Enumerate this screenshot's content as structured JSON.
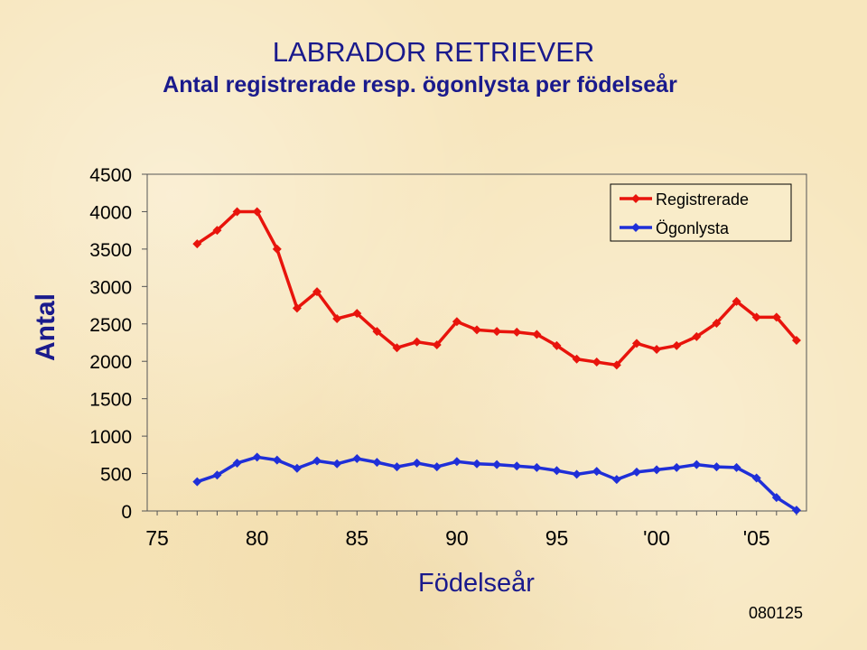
{
  "title": "LABRADOR RETRIEVER",
  "subtitle": "Antal registrerade resp. ögonlysta per födelseår",
  "stamp": "080125",
  "chart_data": {
    "type": "line",
    "xlabel": "Födelseår",
    "ylabel": "Antal",
    "x": [
      1977,
      1978,
      1979,
      1980,
      1981,
      1982,
      1983,
      1984,
      1985,
      1986,
      1987,
      1988,
      1989,
      1990,
      1991,
      1992,
      1993,
      1994,
      1995,
      1996,
      1997,
      1998,
      1999,
      2000,
      2001,
      2002,
      2003,
      2004,
      2005,
      2006,
      2007
    ],
    "xlim": [
      1974.5,
      2007.5
    ],
    "ylim": [
      0,
      4500
    ],
    "x_ticks": [
      1975,
      1980,
      1985,
      1990,
      1995,
      2000,
      2005
    ],
    "x_tick_labels": [
      "75",
      "80",
      "85",
      "90",
      "95",
      "'00",
      "'05"
    ],
    "y_ticks": [
      0,
      500,
      1000,
      1500,
      2000,
      2500,
      3000,
      3500,
      4000,
      4500
    ],
    "y_tick_labels": [
      "0",
      "500",
      "1000",
      "1500",
      "2000",
      "2500",
      "3000",
      "3500",
      "4000",
      "4500"
    ],
    "grid": false,
    "legend_position": "top-right",
    "series": [
      {
        "name": "Registrerade",
        "color": "#e8140c",
        "values": [
          3570,
          3750,
          4000,
          4000,
          3500,
          2710,
          2930,
          2570,
          2640,
          2400,
          2180,
          2260,
          2220,
          2530,
          2420,
          2400,
          2390,
          2360,
          2210,
          2030,
          1990,
          1950,
          2240,
          2160,
          2210,
          2330,
          2510,
          2800,
          2590,
          2590,
          2280
        ]
      },
      {
        "name": "Ögonlysta",
        "color": "#1f2fd8",
        "values": [
          390,
          480,
          640,
          720,
          680,
          570,
          670,
          630,
          700,
          650,
          590,
          640,
          590,
          660,
          630,
          620,
          600,
          580,
          540,
          490,
          530,
          420,
          520,
          550,
          580,
          620,
          590,
          580,
          440,
          180,
          10
        ]
      }
    ]
  }
}
